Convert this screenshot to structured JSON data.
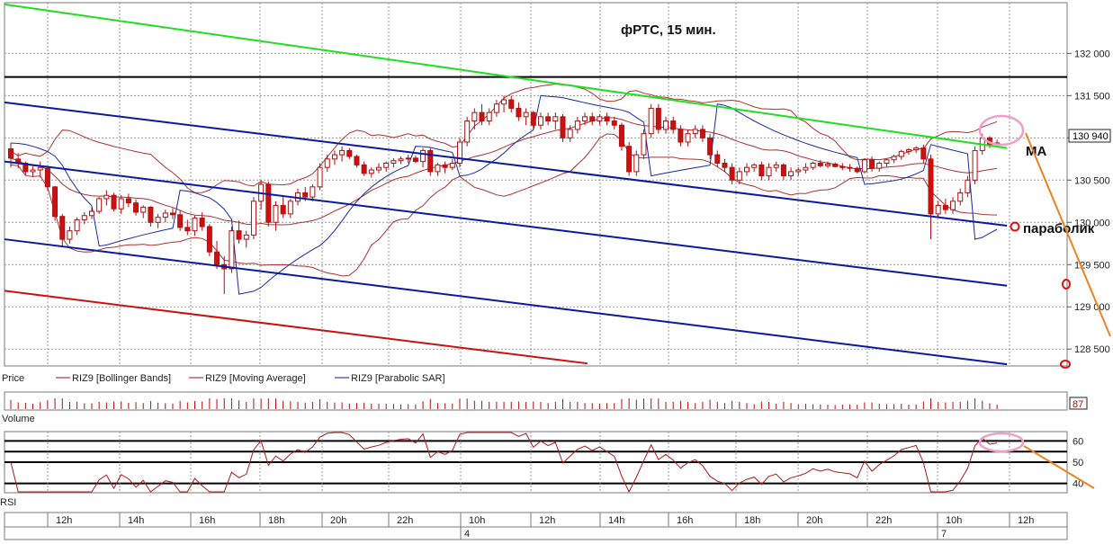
{
  "chart_data": {
    "type": "candlestick",
    "title": "фРТС,  15 мин.",
    "price_panel": {
      "ylim": [
        128300,
        132600
      ],
      "y_ticks": [
        128500,
        129000,
        129500,
        130000,
        130500,
        131000,
        131500,
        132000
      ],
      "y_tick_labels": [
        "128 500",
        "129 000",
        "129 500",
        "130 000",
        "130 500",
        "131 000",
        "131 500",
        "132 000"
      ],
      "last_price": 130940,
      "last_price_label": "130 940",
      "legend": [
        "Price",
        "RIZ9 [Bollinger Bands]",
        "RIZ9 [Moving Average]",
        "RIZ9 [Parabolic SAR]"
      ],
      "horizontal_level": 131720,
      "candles_ohlc": [
        [
          130870,
          130940,
          130650,
          130760
        ],
        [
          130750,
          130820,
          130640,
          130700
        ],
        [
          130700,
          130720,
          130560,
          130600
        ],
        [
          130600,
          130660,
          130540,
          130620
        ],
        [
          130620,
          130720,
          130530,
          130650
        ],
        [
          130640,
          130660,
          130380,
          130420
        ],
        [
          130420,
          130430,
          130020,
          130070
        ],
        [
          130070,
          130100,
          129720,
          129800
        ],
        [
          129800,
          129950,
          129750,
          129900
        ],
        [
          129900,
          130060,
          129850,
          130030
        ],
        [
          130030,
          130120,
          129980,
          130080
        ],
        [
          130080,
          130180,
          130040,
          130130
        ],
        [
          130130,
          130300,
          130100,
          130280
        ],
        [
          130280,
          130380,
          130200,
          130320
        ],
        [
          130320,
          130350,
          130130,
          130160
        ],
        [
          130160,
          130320,
          130100,
          130280
        ],
        [
          130280,
          130340,
          130180,
          130230
        ],
        [
          130230,
          130270,
          130080,
          130120
        ],
        [
          130120,
          130200,
          130050,
          130180
        ],
        [
          130180,
          130190,
          129950,
          130000
        ],
        [
          130000,
          130100,
          129930,
          130060
        ],
        [
          130060,
          130150,
          130000,
          130110
        ],
        [
          130110,
          130170,
          130040,
          130090
        ],
        [
          130090,
          130140,
          129900,
          129940
        ],
        [
          129940,
          130030,
          129850,
          129900
        ],
        [
          129900,
          130080,
          129840,
          130050
        ],
        [
          130050,
          130120,
          129900,
          129950
        ],
        [
          129950,
          129980,
          129600,
          129650
        ],
        [
          129650,
          129780,
          129450,
          129500
        ],
        [
          129500,
          129600,
          129150,
          129450
        ],
        [
          129450,
          129950,
          129400,
          129900
        ],
        [
          129900,
          130020,
          129750,
          129800
        ],
        [
          129800,
          129900,
          129700,
          129850
        ],
        [
          129850,
          130300,
          129800,
          130250
        ],
        [
          130250,
          130500,
          130150,
          130450
        ],
        [
          130450,
          130480,
          129950,
          130000
        ],
        [
          130000,
          130250,
          129900,
          130200
        ],
        [
          130200,
          130300,
          130050,
          130100
        ],
        [
          130100,
          130280,
          130050,
          130250
        ],
        [
          130250,
          130400,
          130200,
          130350
        ],
        [
          130350,
          130420,
          130250,
          130300
        ],
        [
          130300,
          130450,
          130250,
          130420
        ],
        [
          130420,
          130700,
          130380,
          130650
        ],
        [
          130650,
          130800,
          130600,
          130750
        ],
        [
          130750,
          130850,
          130680,
          130800
        ],
        [
          130800,
          130900,
          130720,
          130850
        ],
        [
          130850,
          130880,
          130750,
          130780
        ],
        [
          130780,
          130800,
          130650,
          130680
        ],
        [
          130680,
          130720,
          130550,
          130580
        ],
        [
          130580,
          130650,
          130530,
          130620
        ],
        [
          130620,
          130700,
          130580,
          130650
        ],
        [
          130650,
          130720,
          130600,
          130700
        ],
        [
          130700,
          130760,
          130650,
          130730
        ],
        [
          130730,
          130780,
          130690,
          130750
        ],
        [
          130750,
          130800,
          130700,
          130760
        ],
        [
          130760,
          130790,
          130700,
          130720
        ],
        [
          130720,
          130880,
          130650,
          130850
        ],
        [
          130850,
          130880,
          130550,
          130600
        ],
        [
          130600,
          130700,
          130550,
          130680
        ],
        [
          130680,
          130720,
          130580,
          130650
        ],
        [
          130650,
          130750,
          130620,
          130700
        ],
        [
          130700,
          131000,
          130650,
          130950
        ],
        [
          130950,
          131250,
          130900,
          131200
        ],
        [
          131200,
          131350,
          131100,
          131300
        ],
        [
          131300,
          131400,
          131150,
          131200
        ],
        [
          131200,
          131350,
          131150,
          131300
        ],
        [
          131300,
          131450,
          131250,
          131400
        ],
        [
          131400,
          131500,
          131300,
          131450
        ],
        [
          131450,
          131500,
          131300,
          131350
        ],
        [
          131350,
          131420,
          131200,
          131250
        ],
        [
          131250,
          131350,
          131150,
          131300
        ],
        [
          131300,
          131320,
          131100,
          131150
        ],
        [
          131150,
          131300,
          131100,
          131250
        ],
        [
          131250,
          131300,
          131150,
          131200
        ],
        [
          131200,
          131300,
          131100,
          131250
        ],
        [
          131250,
          131280,
          130950,
          131000
        ],
        [
          131000,
          131150,
          130950,
          131100
        ],
        [
          131100,
          131250,
          131050,
          131200
        ],
        [
          131200,
          131300,
          131150,
          131250
        ],
        [
          131250,
          131300,
          131150,
          131200
        ],
        [
          131200,
          131280,
          131150,
          131250
        ],
        [
          131250,
          131300,
          131150,
          131200
        ],
        [
          131200,
          131250,
          131100,
          131150
        ],
        [
          131150,
          131180,
          130850,
          130900
        ],
        [
          130900,
          130950,
          130550,
          130600
        ],
        [
          130600,
          130850,
          130550,
          130800
        ],
        [
          130800,
          131100,
          130750,
          131050
        ],
        [
          131050,
          131400,
          131000,
          131350
        ],
        [
          131350,
          131400,
          131050,
          131100
        ],
        [
          131100,
          131250,
          131050,
          131200
        ],
        [
          131200,
          131250,
          131050,
          131100
        ],
        [
          131100,
          131150,
          130900,
          130950
        ],
        [
          130950,
          131100,
          130900,
          131050
        ],
        [
          131050,
          131150,
          131000,
          131100
        ],
        [
          131100,
          131150,
          130950,
          131000
        ],
        [
          131000,
          131050,
          130750,
          130800
        ],
        [
          130800,
          130850,
          130650,
          130700
        ],
        [
          130700,
          130750,
          130600,
          130650
        ],
        [
          130650,
          130700,
          130450,
          130500
        ],
        [
          130500,
          130650,
          130450,
          130600
        ],
        [
          130600,
          130700,
          130550,
          130650
        ],
        [
          130650,
          130700,
          130600,
          130680
        ],
        [
          130680,
          130720,
          130500,
          130550
        ],
        [
          130550,
          130700,
          130500,
          130650
        ],
        [
          130650,
          130720,
          130600,
          130680
        ],
        [
          130680,
          130700,
          130500,
          130550
        ],
        [
          130550,
          130650,
          130500,
          130600
        ],
        [
          130600,
          130650,
          130550,
          130620
        ],
        [
          130620,
          130700,
          130580,
          130650
        ],
        [
          130650,
          130720,
          130620,
          130700
        ],
        [
          130700,
          130740,
          130650,
          130670
        ],
        [
          130670,
          130720,
          130640,
          130690
        ],
        [
          130690,
          130710,
          130650,
          130660
        ],
        [
          130660,
          130700,
          130620,
          130650
        ],
        [
          130650,
          130690,
          130600,
          130640
        ],
        [
          130640,
          130660,
          130580,
          130600
        ],
        [
          130600,
          130760,
          130580,
          130740
        ],
        [
          130740,
          130780,
          130600,
          130640
        ],
        [
          130640,
          130720,
          130600,
          130700
        ],
        [
          130700,
          130760,
          130660,
          130740
        ],
        [
          130740,
          130800,
          130700,
          130780
        ],
        [
          130780,
          130860,
          130740,
          130840
        ],
        [
          130840,
          130880,
          130800,
          130860
        ],
        [
          130860,
          130900,
          130820,
          130880
        ],
        [
          130880,
          130920,
          130700,
          130750
        ],
        [
          130750,
          130800,
          129800,
          130100
        ],
        [
          130100,
          130250,
          130050,
          130200
        ],
        [
          130200,
          130280,
          130100,
          130150
        ],
        [
          130150,
          130300,
          130100,
          130250
        ],
        [
          130250,
          130400,
          130200,
          130350
        ],
        [
          130350,
          130550,
          130300,
          130500
        ],
        [
          130500,
          130900,
          130450,
          130850
        ],
        [
          130850,
          131050,
          130800,
          131000
        ],
        [
          131000,
          131020,
          130880,
          130920
        ],
        [
          130920,
          130980,
          130900,
          130940
        ]
      ],
      "channel_lines": [
        {
          "color": "#1ee01e",
          "from": [
            0,
            132580
          ],
          "to": [
            134,
            130880
          ]
        },
        {
          "color": "#0a1aa0",
          "from": [
            0,
            131420
          ],
          "to": [
            134,
            129960
          ]
        },
        {
          "color": "#0a1aa0",
          "from": [
            0,
            130720
          ],
          "to": [
            134,
            129250
          ]
        },
        {
          "color": "#0a1aa0",
          "from": [
            0,
            129800
          ],
          "to": [
            134,
            128320
          ]
        },
        {
          "color": "#cc1111",
          "from": [
            0,
            129190
          ],
          "to": [
            77,
            128330
          ]
        }
      ]
    },
    "volume_panel": {
      "label": "Volume",
      "last_value_label": "87"
    },
    "rsi_panel": {
      "label": "RSI",
      "levels": [
        40,
        50,
        60
      ],
      "level_labels": [
        "40",
        "50",
        "60"
      ]
    },
    "x_axis": {
      "tick_labels": [
        "12h",
        "14h",
        "16h",
        "18h",
        "20h",
        "22h",
        "10h",
        "12h",
        "14h",
        "16h",
        "18h",
        "20h",
        "22h",
        "10h",
        "12h"
      ],
      "date_labels": [
        "4",
        "7"
      ]
    },
    "annotations": [
      "МА",
      "параболик"
    ]
  }
}
